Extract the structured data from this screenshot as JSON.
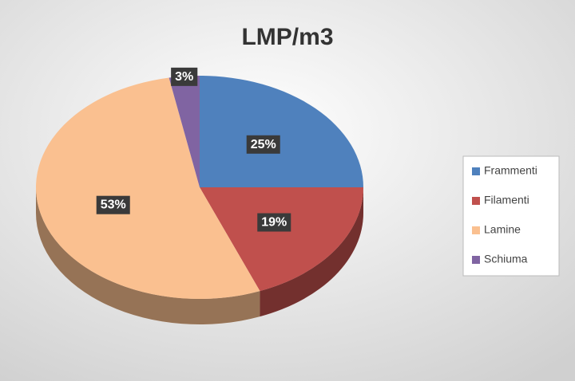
{
  "chart_data": {
    "type": "pie",
    "title": "LMP/m3",
    "categories": [
      "Frammenti",
      "Filamenti",
      "Lamine",
      "Schiuma"
    ],
    "values": [
      25,
      19,
      53,
      3
    ],
    "value_labels": [
      "25%",
      "19%",
      "53%",
      "3%"
    ],
    "colors": [
      "#4f81bd",
      "#c0504d",
      "#fac090",
      "#8064a2"
    ],
    "legend": "right"
  }
}
